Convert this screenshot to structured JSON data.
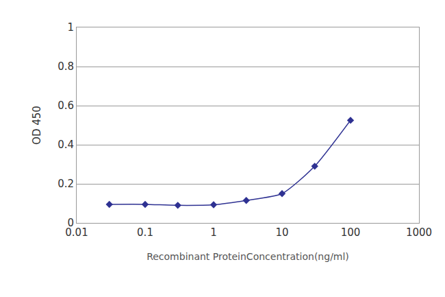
{
  "chart_data": {
    "type": "line",
    "x_label": "Recombinant ProteinConcentration(ng/ml)",
    "y_label": "OD 450",
    "x": [
      0.03,
      0.1,
      0.3,
      1,
      3,
      10,
      30,
      100
    ],
    "values": [
      0.095,
      0.095,
      0.09,
      0.093,
      0.115,
      0.15,
      0.29,
      0.525
    ],
    "color": "#2e3192",
    "marker": "diamond",
    "line_style": "solid",
    "log": "x",
    "xlim": [
      0.01,
      1000
    ],
    "xticks": [
      0.01,
      0.1,
      1,
      10,
      100,
      1000
    ],
    "ylim": [
      0,
      1
    ],
    "yticks": [
      0,
      0.2,
      0.4,
      0.6,
      0.8,
      1
    ],
    "grid": true
  }
}
